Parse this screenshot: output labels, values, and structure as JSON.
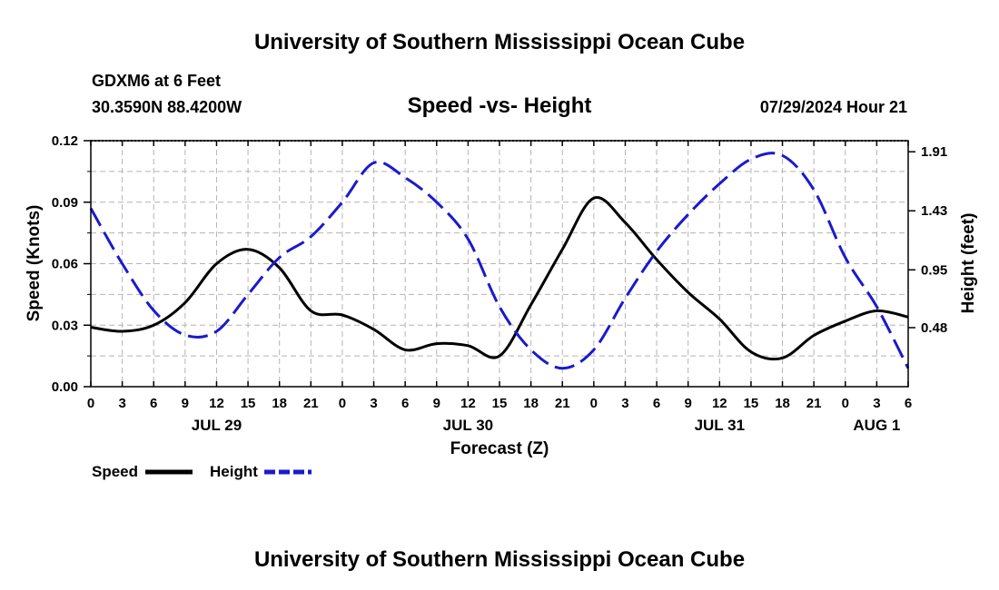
{
  "header": {
    "title": "University of Southern Mississippi Ocean Cube",
    "station": "GDXM6 at 6 Feet",
    "location": "30.3590N  88.4200W",
    "subtitle": "Speed -vs- Height",
    "datetime": "07/29/2024 Hour 21",
    "footer_title": "University of Southern Mississippi Ocean Cube"
  },
  "chart_data": {
    "type": "line",
    "title": "Speed -vs- Height",
    "xlabel": "Forecast (Z)",
    "ylabel_left": "Speed (Knots)",
    "ylabel_right": "Height (feet)",
    "x_unit": "hours since Jul 29 00Z",
    "xlim": [
      0,
      78
    ],
    "ylim_left": [
      0,
      0.12
    ],
    "ylim_right": [
      0.0,
      2.0
    ],
    "grid": true,
    "x_tick_labels": [
      "0",
      "3",
      "6",
      "9",
      "12",
      "15",
      "18",
      "21",
      "0",
      "3",
      "6",
      "9",
      "12",
      "15",
      "18",
      "21",
      "0",
      "3",
      "6",
      "9",
      "12",
      "15",
      "18",
      "21",
      "0",
      "3",
      "6"
    ],
    "day_labels": [
      {
        "label": "JUL 29",
        "hour": 12
      },
      {
        "label": "JUL 30",
        "hour": 36
      },
      {
        "label": "JUL 31",
        "hour": 60
      },
      {
        "label": "AUG 1",
        "hour": 75
      }
    ],
    "y_left_ticks": [
      {
        "value": 0.0,
        "label": "0.00"
      },
      {
        "value": 0.03,
        "label": "0.03"
      },
      {
        "value": 0.06,
        "label": "0.06"
      },
      {
        "value": 0.09,
        "label": "0.09"
      },
      {
        "value": 0.12,
        "label": "0.12"
      }
    ],
    "y_right_ticks": [
      {
        "value": 0.48,
        "label": "0.48"
      },
      {
        "value": 0.95,
        "label": "0.95"
      },
      {
        "value": 1.43,
        "label": "1.43"
      },
      {
        "value": 1.91,
        "label": "1.91"
      }
    ],
    "legend": [
      {
        "name": "Speed",
        "color": "#000000",
        "dash": "solid"
      },
      {
        "name": "Height",
        "color": "#1a1acc",
        "dash": "dashed"
      }
    ],
    "series": [
      {
        "name": "Speed",
        "axis": "left",
        "color": "#000000",
        "x": [
          0,
          3,
          6,
          9,
          12,
          15,
          18,
          21,
          24,
          27,
          30,
          33,
          36,
          39,
          42,
          45,
          48,
          51,
          54,
          57,
          60,
          63,
          66,
          69,
          72,
          75,
          78
        ],
        "values": [
          0.029,
          0.027,
          0.03,
          0.041,
          0.06,
          0.067,
          0.058,
          0.037,
          0.035,
          0.028,
          0.018,
          0.021,
          0.02,
          0.015,
          0.04,
          0.067,
          0.092,
          0.08,
          0.062,
          0.046,
          0.033,
          0.017,
          0.014,
          0.025,
          0.032,
          0.037,
          0.034
        ]
      },
      {
        "name": "Height",
        "axis": "right",
        "color": "#1a1acc",
        "x": [
          0,
          3,
          6,
          9,
          12,
          15,
          18,
          21,
          24,
          27,
          30,
          33,
          36,
          39,
          42,
          45,
          48,
          51,
          54,
          57,
          60,
          63,
          66,
          69,
          72,
          75,
          78
        ],
        "values": [
          1.45,
          1.0,
          0.62,
          0.42,
          0.45,
          0.75,
          1.05,
          1.22,
          1.5,
          1.82,
          1.7,
          1.5,
          1.2,
          0.65,
          0.3,
          0.15,
          0.3,
          0.72,
          1.1,
          1.4,
          1.65,
          1.85,
          1.88,
          1.6,
          1.05,
          0.65,
          0.15
        ]
      }
    ]
  }
}
